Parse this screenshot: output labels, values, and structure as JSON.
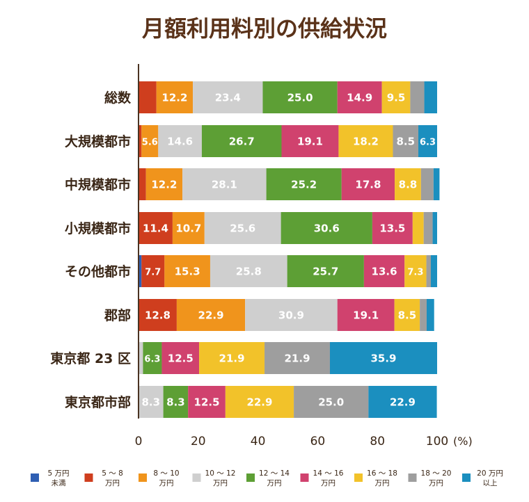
{
  "chart_data": {
    "type": "bar",
    "orientation": "horizontal",
    "stacked": true,
    "title": "月額利用料別の供給状況",
    "categories": [
      "総数",
      "大規模都市",
      "中規模都市",
      "小規模都市",
      "その他都市",
      "郡部",
      "東京都 23 区",
      "東京都市部"
    ],
    "xlim": [
      0,
      100
    ],
    "xticks": [
      "0",
      "20",
      "40",
      "60",
      "80",
      "100"
    ],
    "x_unit": "(%)",
    "grid": false,
    "legend_position": "bottom",
    "series": [
      {
        "name": [
          "5 万円",
          "未満"
        ],
        "color": "#2f5fb3",
        "values": [
          0,
          0,
          0,
          0,
          1.0,
          0,
          0,
          0
        ],
        "labels": [
          "",
          "",
          "",
          "",
          "",
          "",
          "",
          ""
        ]
      },
      {
        "name": [
          "5 ～ 8",
          "万円"
        ],
        "color": "#cf3e1e",
        "values": [
          6.0,
          1.0,
          2.5,
          11.4,
          7.7,
          12.8,
          0,
          0
        ],
        "labels": [
          "",
          "",
          "",
          "11.4",
          "7.7",
          "12.8",
          "",
          ""
        ]
      },
      {
        "name": [
          "8 ～ 10",
          "万円"
        ],
        "color": "#f0941c",
        "values": [
          12.2,
          5.6,
          12.2,
          10.7,
          15.3,
          22.9,
          0,
          0
        ],
        "labels": [
          "12.2",
          "5.6",
          "12.2",
          "10.7",
          "15.3",
          "22.9",
          "",
          ""
        ]
      },
      {
        "name": [
          "10 ～ 12",
          "万円"
        ],
        "color": "#cfcfcf",
        "values": [
          23.4,
          14.6,
          28.1,
          25.6,
          25.8,
          30.9,
          1.5,
          8.3
        ],
        "labels": [
          "23.4",
          "14.6",
          "28.1",
          "25.6",
          "25.8",
          "30.9",
          "",
          "8.3"
        ]
      },
      {
        "name": [
          "12 ～ 14",
          "万円"
        ],
        "color": "#5d9f35",
        "values": [
          25.0,
          26.7,
          25.2,
          30.6,
          25.7,
          0,
          6.3,
          8.3
        ],
        "labels": [
          "25.0",
          "26.7",
          "25.2",
          "30.6",
          "25.7",
          "",
          "6.3",
          "8.3"
        ]
      },
      {
        "name": [
          "14 ～ 16",
          "万円"
        ],
        "color": "#d0426e",
        "values": [
          14.9,
          19.1,
          17.8,
          13.5,
          13.6,
          19.1,
          12.5,
          12.5
        ],
        "labels": [
          "14.9",
          "19.1",
          "17.8",
          "13.5",
          "13.6",
          "19.1",
          "12.5",
          "12.5"
        ]
      },
      {
        "name": [
          "16 ～ 18",
          "万円"
        ],
        "color": "#f2c22a",
        "values": [
          9.5,
          18.2,
          8.8,
          3.7,
          7.3,
          8.5,
          21.9,
          22.9
        ],
        "labels": [
          "9.5",
          "18.2",
          "8.8",
          "",
          "7.3",
          "8.5",
          "21.9",
          "22.9"
        ]
      },
      {
        "name": [
          "18 ～ 20",
          "万円"
        ],
        "color": "#9e9e9e",
        "values": [
          4.7,
          8.5,
          4.2,
          3.0,
          1.5,
          2.3,
          21.9,
          25.0
        ],
        "labels": [
          "",
          "8.5",
          "",
          "",
          "",
          "",
          "21.9",
          "25.0"
        ]
      },
      {
        "name": [
          "20 万円",
          "以上"
        ],
        "color": "#1b8fbf",
        "values": [
          4.3,
          6.3,
          2.0,
          1.5,
          2.1,
          2.5,
          35.9,
          22.9
        ],
        "labels": [
          "",
          "6.3",
          "",
          "",
          "",
          "",
          "35.9",
          "22.9"
        ]
      }
    ]
  }
}
